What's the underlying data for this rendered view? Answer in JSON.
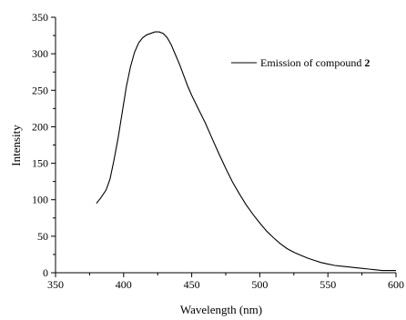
{
  "chart_data": {
    "type": "line",
    "xlabel": "Wavelength (nm)",
    "ylabel": "Intensity",
    "xlim": [
      350,
      600
    ],
    "ylim": [
      0,
      350
    ],
    "x_ticks": [
      350,
      400,
      450,
      500,
      550,
      600
    ],
    "y_ticks": [
      0,
      50,
      100,
      150,
      200,
      250,
      300,
      350
    ],
    "grid": false,
    "legend_position": "top-right",
    "legend": {
      "prefix": "Emission of compound ",
      "bold": "2"
    },
    "series": [
      {
        "color": "#000000",
        "x": [
          380,
          383,
          387,
          390,
          393,
          396,
          399,
          402,
          405,
          408,
          411,
          414,
          417,
          420,
          423,
          426,
          429,
          432,
          435,
          438,
          441,
          444,
          447,
          450,
          455,
          460,
          465,
          470,
          475,
          480,
          485,
          490,
          495,
          500,
          505,
          510,
          515,
          520,
          525,
          530,
          535,
          540,
          545,
          550,
          555,
          560,
          565,
          570,
          575,
          580,
          585,
          590,
          595,
          600
        ],
        "values": [
          95,
          102,
          113,
          128,
          155,
          185,
          220,
          255,
          282,
          302,
          315,
          322,
          326,
          328,
          330,
          330,
          328,
          322,
          312,
          299,
          286,
          271,
          256,
          243,
          224,
          205,
          184,
          163,
          143,
          124,
          108,
          93,
          80,
          68,
          57,
          48,
          40,
          33,
          28,
          24,
          20,
          17,
          14,
          12,
          10,
          9,
          8,
          7,
          6,
          5,
          4,
          3,
          3,
          3
        ]
      }
    ]
  }
}
